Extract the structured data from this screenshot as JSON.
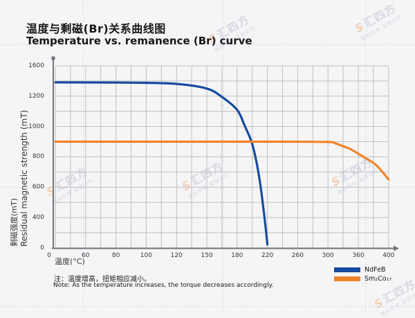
{
  "colors": {
    "bg": "#f5f5f6",
    "grid": "#bfbfc3",
    "axis": "#73757c",
    "titletext": "#17181a",
    "ticktext": "#36363a",
    "guide": "#c5cfe2",
    "wmtext": "#8d93b8",
    "wmlogo": "#f08229",
    "ndfeb": "#164a9e",
    "smco": "#f08228"
  },
  "title": {
    "zh": "温度与剩磁(Br)关系曲线图",
    "en": "Temperature vs. remanence (Br) curve"
  },
  "chart_data": {
    "type": "line",
    "xlabel": "温度(°C)",
    "ylabel_zh": "剩磁强度(mT)",
    "ylabel_en": "Residual magnetic strength (mT)",
    "x_ticks": [
      0,
      60,
      80,
      100,
      120,
      150,
      180,
      220,
      260,
      300,
      360,
      400
    ],
    "y_ticks": [
      1600,
      1200,
      1000,
      800,
      600,
      400,
      0
    ],
    "grid": true,
    "legend_position": "bottom-right",
    "series": [
      {
        "name": "NdFeB",
        "color": "#164a9e",
        "points": [
          [
            0,
            1382
          ],
          [
            60,
            1381
          ],
          [
            90,
            1378
          ],
          [
            120,
            1362
          ],
          [
            150,
            1300
          ],
          [
            165,
            1195
          ],
          [
            180,
            1110
          ],
          [
            190,
            1005
          ],
          [
            199,
            900
          ],
          [
            205,
            780
          ],
          [
            210,
            640
          ],
          [
            214,
            490
          ],
          [
            217,
            330
          ],
          [
            220,
            45
          ]
        ]
      },
      {
        "name": "Sm₂Co₁₇",
        "color": "#f08228",
        "points": [
          [
            0,
            900
          ],
          [
            80,
            900
          ],
          [
            160,
            900
          ],
          [
            240,
            900
          ],
          [
            300,
            898
          ],
          [
            315,
            888
          ],
          [
            330,
            870
          ],
          [
            345,
            850
          ],
          [
            369,
            793
          ],
          [
            384,
            744
          ],
          [
            400,
            651
          ]
        ]
      }
    ]
  },
  "note": {
    "zh": "注：温度增高，扭矩相应减小。",
    "en": "Note: As the temperature increases, the torque decreases accordingly."
  },
  "watermark": {
    "logo": "S",
    "brand": "汇四方",
    "notice": "版权所有 盗图必究"
  }
}
